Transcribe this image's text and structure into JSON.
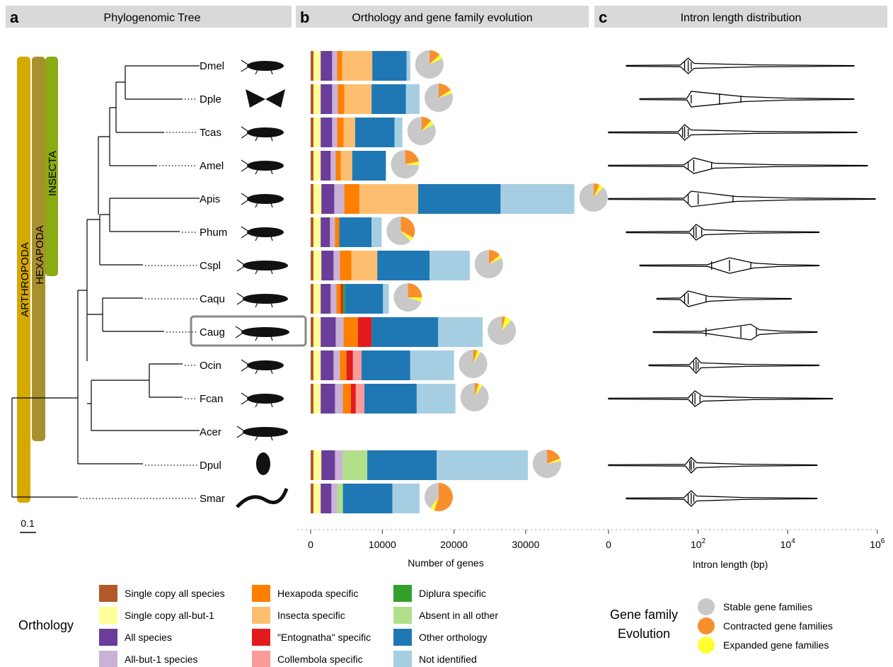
{
  "panels": {
    "a": {
      "letter": "a",
      "title": "Phylogenomic Tree"
    },
    "b": {
      "letter": "b",
      "title": "Orthology and gene family evolution"
    },
    "c": {
      "letter": "c",
      "title": "Intron length distribution"
    }
  },
  "clades": {
    "arthropoda": "ARTHROPODA",
    "hexapoda": "HEXAPODA",
    "insecta": "INSECTA"
  },
  "scale_bar": "0.1",
  "colors": {
    "header_bg": "#d9d9d9",
    "arthropoda": "#d4a900",
    "hexapoda": "#a8902f",
    "insecta": "#8aab12",
    "highlight_box": "#888888",
    "pie_stable": "#c8c8c8",
    "pie_contracted": "#f7902c",
    "pie_expanded": "#ffff33"
  },
  "species": [
    "Dmel",
    "Dple",
    "Tcas",
    "Amel",
    "Apis",
    "Phum",
    "Cspl",
    "Caqu",
    "Caug",
    "Ocin",
    "Fcan",
    "Acer",
    "Dpul",
    "Smar"
  ],
  "highlighted_species": "Caug",
  "chart_data": [
    {
      "type": "bar",
      "stacked": true,
      "orientation": "horizontal",
      "xlabel": "Number of genes",
      "xlim": [
        0,
        36000
      ],
      "xticks": [
        0,
        10000,
        20000,
        30000
      ],
      "xtick_labels": [
        "0",
        "10000",
        "20000",
        "30000"
      ],
      "categories": [
        "Dmel",
        "Dple",
        "Tcas",
        "Amel",
        "Apis",
        "Phum",
        "Cspl",
        "Caqu",
        "Caug",
        "Ocin",
        "Fcan",
        "Acer",
        "Dpul",
        "Smar"
      ],
      "series": [
        {
          "name": "Single copy all species",
          "color": "#b15928",
          "values": [
            400,
            400,
            400,
            400,
            400,
            400,
            400,
            400,
            400,
            400,
            400,
            0,
            400,
            400
          ]
        },
        {
          "name": "Single copy all-but-1",
          "color": "#ffff99",
          "values": [
            1000,
            1000,
            1000,
            1000,
            1100,
            1000,
            1100,
            1000,
            1000,
            1000,
            1000,
            0,
            1100,
            1000
          ]
        },
        {
          "name": "All species",
          "color": "#6a3d9a",
          "values": [
            1600,
            1600,
            1600,
            1400,
            1800,
            1300,
            1700,
            1400,
            2100,
            1800,
            2000,
            0,
            1900,
            1500
          ]
        },
        {
          "name": "All-but-1 species",
          "color": "#cab2d6",
          "values": [
            700,
            800,
            700,
            700,
            1400,
            700,
            900,
            800,
            1100,
            900,
            1100,
            0,
            1100,
            800
          ]
        },
        {
          "name": "Hexapoda specific",
          "color": "#ff7f00",
          "values": [
            700,
            900,
            900,
            700,
            2100,
            600,
            1600,
            600,
            2000,
            900,
            1100,
            0,
            0,
            0
          ]
        },
        {
          "name": "Insecta specific",
          "color": "#fdbf6f",
          "values": [
            4200,
            3800,
            1600,
            1600,
            8200,
            0,
            3600,
            0,
            0,
            0,
            0,
            0,
            0,
            0
          ]
        },
        {
          "name": "\"Entognatha\" specific",
          "color": "#e31a1c",
          "values": [
            0,
            0,
            0,
            0,
            0,
            0,
            0,
            300,
            1900,
            900,
            700,
            0,
            0,
            0
          ]
        },
        {
          "name": "Collembola specific",
          "color": "#fb9a99",
          "values": [
            0,
            0,
            0,
            0,
            0,
            0,
            0,
            0,
            0,
            1200,
            1200,
            0,
            0,
            0
          ]
        },
        {
          "name": "Diplura specific",
          "color": "#33a02c",
          "values": [
            0,
            0,
            0,
            0,
            0,
            0,
            0,
            300,
            0,
            0,
            0,
            0,
            0,
            0
          ]
        },
        {
          "name": "Absent in all other",
          "color": "#b2df8a",
          "values": [
            0,
            0,
            0,
            0,
            0,
            0,
            0,
            0,
            0,
            0,
            0,
            0,
            3400,
            800
          ]
        },
        {
          "name": "Other orthology",
          "color": "#1f78b4",
          "values": [
            4800,
            4800,
            5500,
            4700,
            11500,
            4500,
            7300,
            5300,
            9300,
            6800,
            7300,
            0,
            9700,
            6900
          ]
        },
        {
          "name": "Not identified",
          "color": "#a6cee3",
          "values": [
            500,
            1900,
            1100,
            0,
            10300,
            1400,
            5600,
            800,
            6200,
            6100,
            5400,
            0,
            12700,
            3800
          ]
        }
      ],
      "pies": [
        {
          "stable": 0.82,
          "contracted": 0.13,
          "expanded": 0.05
        },
        {
          "stable": 0.8,
          "contracted": 0.16,
          "expanded": 0.04
        },
        {
          "stable": 0.83,
          "contracted": 0.12,
          "expanded": 0.05
        },
        {
          "stable": 0.74,
          "contracted": 0.22,
          "expanded": 0.04
        },
        {
          "stable": 0.88,
          "contracted": 0.07,
          "expanded": 0.05
        },
        {
          "stable": 0.62,
          "contracted": 0.33,
          "expanded": 0.05
        },
        {
          "stable": 0.82,
          "contracted": 0.14,
          "expanded": 0.04
        },
        {
          "stable": 0.7,
          "contracted": 0.25,
          "expanded": 0.05
        },
        {
          "stable": 0.88,
          "contracted": 0.04,
          "expanded": 0.08
        },
        {
          "stable": 0.91,
          "contracted": 0.05,
          "expanded": 0.04
        },
        {
          "stable": 0.91,
          "contracted": 0.05,
          "expanded": 0.04
        },
        null,
        {
          "stable": 0.78,
          "contracted": 0.19,
          "expanded": 0.03
        },
        {
          "stable": 0.4,
          "contracted": 0.55,
          "expanded": 0.05
        }
      ]
    },
    {
      "type": "violin",
      "xlabel": "Intron length (bp)",
      "x_scale": "log10",
      "xlim": [
        1,
        1000000
      ],
      "xticks": [
        1,
        100,
        10000,
        1000000
      ],
      "xtick_labels": [
        {
          "base": "0",
          "exp": ""
        },
        {
          "base": "10",
          "exp": "2"
        },
        {
          "base": "10",
          "exp": "4"
        },
        {
          "base": "10",
          "exp": "6"
        }
      ],
      "categories": [
        "Dmel",
        "Dple",
        "Tcas",
        "Amel",
        "Apis",
        "Phum",
        "Cspl",
        "Caqu",
        "Caug",
        "Ocin",
        "Fcan",
        "Acer",
        "Dpul",
        "Smar"
      ],
      "distributions": [
        {
          "min": 2.5,
          "q1": 50,
          "median": 60,
          "q3": 70,
          "max": 300000,
          "mode": 60
        },
        {
          "min": 5,
          "q1": 70,
          "median": 300,
          "q3": 900,
          "max": 300000,
          "mode": 70
        },
        {
          "min": 1,
          "q1": 45,
          "median": 50,
          "q3": 60,
          "max": 350000,
          "mode": 50
        },
        {
          "min": 1,
          "q1": 60,
          "median": 80,
          "q3": 200,
          "max": 600000,
          "mode": 80
        },
        {
          "min": 1,
          "q1": 60,
          "median": 100,
          "q3": 600,
          "max": 900000,
          "mode": 70
        },
        {
          "min": 2.5,
          "q1": 80,
          "median": 90,
          "q3": 120,
          "max": 50000,
          "mode": 90
        },
        {
          "min": 5,
          "q1": 200,
          "median": 500,
          "q3": 1500,
          "max": 50000,
          "mode": 500
        },
        {
          "min": 12,
          "q1": 50,
          "median": 60,
          "q3": 150,
          "max": 12000,
          "mode": 60
        },
        {
          "min": 10,
          "q1": 150,
          "median": 900,
          "q3": 2000,
          "max": 45000,
          "mode": 1500
        },
        {
          "min": 8,
          "q1": 80,
          "median": 90,
          "q3": 100,
          "max": 50000,
          "mode": 90
        },
        {
          "min": 1,
          "q1": 75,
          "median": 85,
          "q3": 110,
          "max": 100000,
          "mode": 85
        },
        null,
        {
          "min": 1,
          "q1": 65,
          "median": 70,
          "q3": 80,
          "max": 45000,
          "mode": 70
        },
        {
          "min": 2.5,
          "q1": 60,
          "median": 70,
          "q3": 80,
          "max": 45000,
          "mode": 70
        }
      ]
    }
  ],
  "legend": {
    "orthology_title": "Orthology",
    "evolution_title_line1": "Gene family",
    "evolution_title_line2": "Evolution",
    "evolution_items": [
      {
        "label": "Stable gene families",
        "key": "stable"
      },
      {
        "label": "Contracted gene families",
        "key": "contracted"
      },
      {
        "label": "Expanded gene families",
        "key": "expanded"
      }
    ]
  }
}
